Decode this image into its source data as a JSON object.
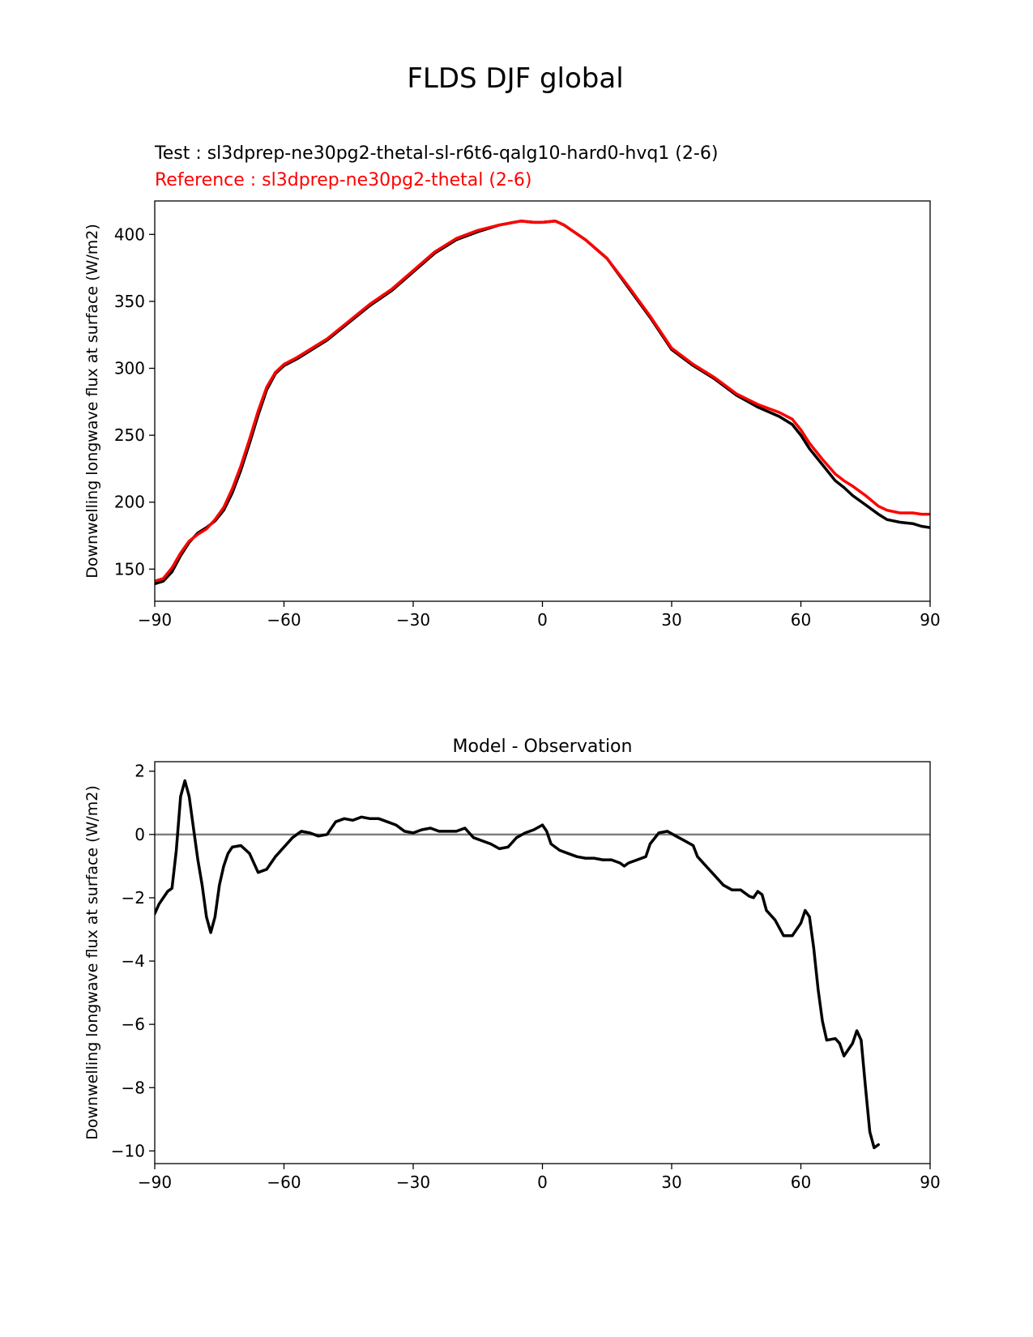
{
  "figure_title": "FLDS DJF global",
  "test_label": "Test : sl3dprep-ne30pg2-thetal-sl-r6t6-qalg10-hard0-hvq1 (2-6)",
  "reference_label": "Reference : sl3dprep-ne30pg2-thetal (2-6)",
  "colors": {
    "test": "#000000",
    "reference": "#ff0000",
    "zero_line": "#808080"
  },
  "chart_data": [
    {
      "type": "line",
      "title": "",
      "ylabel": "Downwelling longwave flux at surface (W/m2)",
      "xlim": [
        -90,
        90
      ],
      "ylim": [
        126,
        425
      ],
      "xticks": [
        -90,
        -60,
        -30,
        0,
        30,
        60,
        90
      ],
      "yticks": [
        150,
        200,
        250,
        300,
        350,
        400
      ],
      "series": [
        {
          "role": "test",
          "points": [
            [
              -90,
              139
            ],
            [
              -88,
              141
            ],
            [
              -86,
              148
            ],
            [
              -84,
              160
            ],
            [
              -82,
              170
            ],
            [
              -80,
              177
            ],
            [
              -78,
              181
            ],
            [
              -76,
              186
            ],
            [
              -74,
              194
            ],
            [
              -72,
              207
            ],
            [
              -70,
              224
            ],
            [
              -68,
              244
            ],
            [
              -66,
              265
            ],
            [
              -64,
              284
            ],
            [
              -62,
              296
            ],
            [
              -60,
              302
            ],
            [
              -57,
              307
            ],
            [
              -54,
              313
            ],
            [
              -50,
              321
            ],
            [
              -45,
              334
            ],
            [
              -40,
              347
            ],
            [
              -35,
              358
            ],
            [
              -30,
              372
            ],
            [
              -25,
              386
            ],
            [
              -20,
              396
            ],
            [
              -15,
              402
            ],
            [
              -10,
              407
            ],
            [
              -5,
              410
            ],
            [
              -2,
              409
            ],
            [
              0,
              409
            ],
            [
              3,
              410
            ],
            [
              5,
              407
            ],
            [
              10,
              396
            ],
            [
              15,
              382
            ],
            [
              20,
              360
            ],
            [
              25,
              338
            ],
            [
              30,
              314
            ],
            [
              35,
              302
            ],
            [
              40,
              292
            ],
            [
              45,
              280
            ],
            [
              50,
              271
            ],
            [
              55,
              264
            ],
            [
              58,
              258
            ],
            [
              60,
              250
            ],
            [
              62,
              240
            ],
            [
              65,
              228
            ],
            [
              68,
              216
            ],
            [
              70,
              211
            ],
            [
              72,
              205
            ],
            [
              75,
              198
            ],
            [
              78,
              191
            ],
            [
              80,
              187
            ],
            [
              83,
              185
            ],
            [
              86,
              184
            ],
            [
              88,
              182
            ],
            [
              90,
              181
            ]
          ]
        },
        {
          "role": "reference",
          "points": [
            [
              -90,
              141
            ],
            [
              -88,
              143
            ],
            [
              -86,
              151
            ],
            [
              -84,
              162
            ],
            [
              -82,
              171
            ],
            [
              -80,
              176
            ],
            [
              -78,
              180
            ],
            [
              -76,
              187
            ],
            [
              -74,
              196
            ],
            [
              -72,
              210
            ],
            [
              -70,
              227
            ],
            [
              -68,
              247
            ],
            [
              -66,
              268
            ],
            [
              -64,
              286
            ],
            [
              -62,
              297
            ],
            [
              -60,
              303
            ],
            [
              -57,
              308
            ],
            [
              -54,
              314
            ],
            [
              -50,
              322
            ],
            [
              -45,
              335
            ],
            [
              -40,
              348
            ],
            [
              -35,
              359
            ],
            [
              -30,
              373
            ],
            [
              -25,
              387
            ],
            [
              -20,
              397
            ],
            [
              -15,
              403
            ],
            [
              -10,
              407
            ],
            [
              -5,
              410
            ],
            [
              -2,
              409
            ],
            [
              0,
              409
            ],
            [
              3,
              410
            ],
            [
              5,
              407
            ],
            [
              10,
              396
            ],
            [
              15,
              382
            ],
            [
              20,
              361
            ],
            [
              25,
              339
            ],
            [
              30,
              315
            ],
            [
              35,
              303
            ],
            [
              40,
              293
            ],
            [
              45,
              281
            ],
            [
              50,
              273
            ],
            [
              55,
              267
            ],
            [
              58,
              262
            ],
            [
              60,
              254
            ],
            [
              62,
              244
            ],
            [
              65,
              232
            ],
            [
              68,
              221
            ],
            [
              70,
              216
            ],
            [
              72,
              212
            ],
            [
              75,
              205
            ],
            [
              78,
              197
            ],
            [
              80,
              194
            ],
            [
              83,
              192
            ],
            [
              86,
              192
            ],
            [
              88,
              191
            ],
            [
              90,
              191
            ]
          ]
        }
      ]
    },
    {
      "type": "line",
      "title": "Model - Observation",
      "ylabel": "Downwelling longwave flux at surface (W/m2)",
      "xlim": [
        -90,
        90
      ],
      "ylim": [
        -10.4,
        2.3
      ],
      "xticks": [
        -90,
        -60,
        -30,
        0,
        30,
        60,
        90
      ],
      "yticks": [
        2,
        0,
        -2,
        -4,
        -6,
        -8,
        -10
      ],
      "zero_line": 0,
      "series": [
        {
          "role": "difference",
          "points": [
            [
              -90,
              -2.5
            ],
            [
              -89,
              -2.2
            ],
            [
              -88,
              -2.0
            ],
            [
              -87,
              -1.8
            ],
            [
              -86,
              -1.7
            ],
            [
              -85,
              -0.5
            ],
            [
              -84,
              1.2
            ],
            [
              -83,
              1.7
            ],
            [
              -82,
              1.2
            ],
            [
              -81,
              0.2
            ],
            [
              -80,
              -0.8
            ],
            [
              -79,
              -1.6
            ],
            [
              -78,
              -2.6
            ],
            [
              -77,
              -3.1
            ],
            [
              -76,
              -2.6
            ],
            [
              -75,
              -1.6
            ],
            [
              -74,
              -1.0
            ],
            [
              -73,
              -0.6
            ],
            [
              -72,
              -0.4
            ],
            [
              -70,
              -0.35
            ],
            [
              -68,
              -0.6
            ],
            [
              -66,
              -1.2
            ],
            [
              -64,
              -1.1
            ],
            [
              -62,
              -0.7
            ],
            [
              -60,
              -0.4
            ],
            [
              -58,
              -0.1
            ],
            [
              -56,
              0.1
            ],
            [
              -54,
              0.05
            ],
            [
              -52,
              -0.05
            ],
            [
              -50,
              0.0
            ],
            [
              -48,
              0.4
            ],
            [
              -46,
              0.5
            ],
            [
              -44,
              0.45
            ],
            [
              -42,
              0.55
            ],
            [
              -40,
              0.5
            ],
            [
              -38,
              0.5
            ],
            [
              -36,
              0.4
            ],
            [
              -34,
              0.3
            ],
            [
              -32,
              0.1
            ],
            [
              -30,
              0.05
            ],
            [
              -28,
              0.15
            ],
            [
              -26,
              0.2
            ],
            [
              -24,
              0.1
            ],
            [
              -22,
              0.1
            ],
            [
              -20,
              0.1
            ],
            [
              -18,
              0.2
            ],
            [
              -16,
              -0.1
            ],
            [
              -14,
              -0.2
            ],
            [
              -12,
              -0.3
            ],
            [
              -10,
              -0.45
            ],
            [
              -8,
              -0.4
            ],
            [
              -6,
              -0.1
            ],
            [
              -4,
              0.05
            ],
            [
              -2,
              0.15
            ],
            [
              0,
              0.3
            ],
            [
              1,
              0.1
            ],
            [
              2,
              -0.3
            ],
            [
              4,
              -0.5
            ],
            [
              6,
              -0.6
            ],
            [
              8,
              -0.7
            ],
            [
              10,
              -0.75
            ],
            [
              12,
              -0.75
            ],
            [
              14,
              -0.8
            ],
            [
              16,
              -0.8
            ],
            [
              18,
              -0.9
            ],
            [
              19,
              -1.0
            ],
            [
              20,
              -0.9
            ],
            [
              22,
              -0.8
            ],
            [
              24,
              -0.7
            ],
            [
              25,
              -0.3
            ],
            [
              27,
              0.05
            ],
            [
              29,
              0.1
            ],
            [
              31,
              -0.05
            ],
            [
              33,
              -0.2
            ],
            [
              35,
              -0.35
            ],
            [
              36,
              -0.7
            ],
            [
              38,
              -1.0
            ],
            [
              40,
              -1.3
            ],
            [
              42,
              -1.6
            ],
            [
              44,
              -1.75
            ],
            [
              46,
              -1.75
            ],
            [
              48,
              -1.95
            ],
            [
              49,
              -2.0
            ],
            [
              50,
              -1.8
            ],
            [
              51,
              -1.9
            ],
            [
              52,
              -2.4
            ],
            [
              54,
              -2.7
            ],
            [
              56,
              -3.2
            ],
            [
              58,
              -3.2
            ],
            [
              60,
              -2.8
            ],
            [
              61,
              -2.4
            ],
            [
              62,
              -2.6
            ],
            [
              63,
              -3.6
            ],
            [
              64,
              -4.9
            ],
            [
              65,
              -5.9
            ],
            [
              66,
              -6.5
            ],
            [
              68,
              -6.45
            ],
            [
              69,
              -6.6
            ],
            [
              70,
              -7.0
            ],
            [
              71,
              -6.8
            ],
            [
              72,
              -6.6
            ],
            [
              73,
              -6.2
            ],
            [
              74,
              -6.5
            ],
            [
              75,
              -8.0
            ],
            [
              76,
              -9.4
            ],
            [
              77,
              -9.9
            ],
            [
              78,
              -9.8
            ]
          ]
        }
      ]
    }
  ]
}
